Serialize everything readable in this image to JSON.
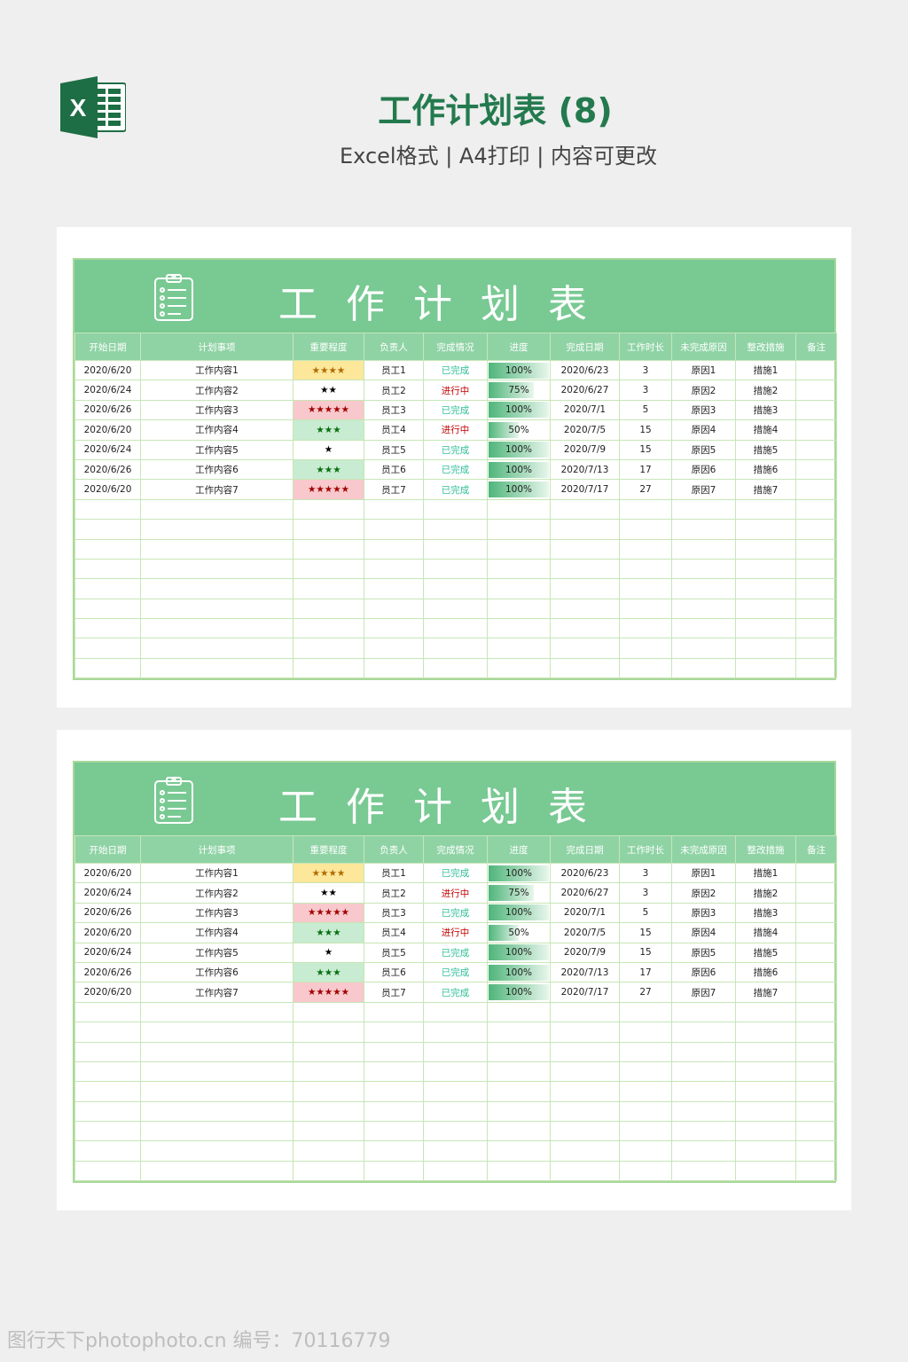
{
  "header": {
    "title": "工作计划表 (8)",
    "subtitle": "Excel格式 | A4打印 | 内容可更改",
    "logo": "excel-logo",
    "logo_letter": "X"
  },
  "sheet": {
    "title": "工作计划表",
    "icon": "clipboard-icon",
    "columns": [
      "开始日期",
      "计划事项",
      "重要程度",
      "负责人",
      "完成情况",
      "进度",
      "完成日期",
      "工作时长",
      "未完成原因",
      "整改措施",
      "备注"
    ],
    "rows": [
      {
        "start": "2020/6/20",
        "task": "工作内容1",
        "stars": "★★★★",
        "star_style": "gold",
        "owner": "员工1",
        "status": "已完成",
        "progress": 100,
        "progress_label": "100%",
        "end": "2020/6/23",
        "hours": "3",
        "reason": "原因1",
        "measure": "措施1",
        "note": ""
      },
      {
        "start": "2020/6/24",
        "task": "工作内容2",
        "stars": "★★",
        "star_style": "black",
        "owner": "员工2",
        "status": "进行中",
        "progress": 75,
        "progress_label": "75%",
        "end": "2020/6/27",
        "hours": "3",
        "reason": "原因2",
        "measure": "措施2",
        "note": ""
      },
      {
        "start": "2020/6/26",
        "task": "工作内容3",
        "stars": "★★★★★",
        "star_style": "red",
        "owner": "员工3",
        "status": "已完成",
        "progress": 100,
        "progress_label": "100%",
        "end": "2020/7/1",
        "hours": "5",
        "reason": "原因3",
        "measure": "措施3",
        "note": ""
      },
      {
        "start": "2020/6/20",
        "task": "工作内容4",
        "stars": "★★★",
        "star_style": "green",
        "owner": "员工4",
        "status": "进行中",
        "progress": 50,
        "progress_label": "50%",
        "end": "2020/7/5",
        "hours": "15",
        "reason": "原因4",
        "measure": "措施4",
        "note": ""
      },
      {
        "start": "2020/6/24",
        "task": "工作内容5",
        "stars": "★",
        "star_style": "black",
        "owner": "员工5",
        "status": "已完成",
        "progress": 100,
        "progress_label": "100%",
        "end": "2020/7/9",
        "hours": "15",
        "reason": "原因5",
        "measure": "措施5",
        "note": ""
      },
      {
        "start": "2020/6/26",
        "task": "工作内容6",
        "stars": "★★★",
        "star_style": "green",
        "owner": "员工6",
        "status": "已完成",
        "progress": 100,
        "progress_label": "100%",
        "end": "2020/7/13",
        "hours": "17",
        "reason": "原因6",
        "measure": "措施6",
        "note": ""
      },
      {
        "start": "2020/6/20",
        "task": "工作内容7",
        "stars": "★★★★★",
        "star_style": "red",
        "owner": "员工7",
        "status": "已完成",
        "progress": 100,
        "progress_label": "100%",
        "end": "2020/7/17",
        "hours": "27",
        "reason": "原因7",
        "measure": "措施7",
        "note": ""
      }
    ],
    "empty_rows": 9
  },
  "colors": {
    "accent": "#79c993",
    "header": "#8fd3a5",
    "done": "#2fbf97",
    "in_progress": "#c00000",
    "title": "#237a4e"
  },
  "watermark": "图行天下photophoto.cn 编号：70116779"
}
